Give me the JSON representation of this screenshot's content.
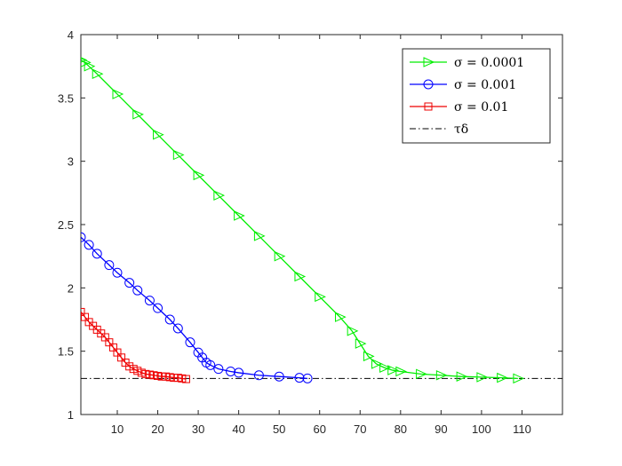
{
  "chart_data": {
    "type": "line",
    "title": "",
    "xlabel": "",
    "ylabel": "",
    "xlim": [
      1,
      120
    ],
    "ylim": [
      1,
      4
    ],
    "xticks": [
      10,
      20,
      30,
      40,
      50,
      60,
      70,
      80,
      90,
      100,
      110
    ],
    "yticks": [
      1,
      1.5,
      2,
      2.5,
      3,
      3.5,
      4
    ],
    "grid": false,
    "legend_position": "top-right",
    "series": [
      {
        "name": "σ = 0.0001",
        "color": "#00ee00",
        "marker": "triangle-right",
        "x": [
          1,
          2,
          3,
          5,
          10,
          15,
          20,
          25,
          30,
          35,
          40,
          45,
          50,
          55,
          60,
          65,
          68,
          70,
          72,
          74,
          76,
          78,
          80,
          85,
          90,
          95,
          100,
          105,
          109
        ],
        "y": [
          3.8,
          3.78,
          3.75,
          3.69,
          3.53,
          3.37,
          3.21,
          3.05,
          2.89,
          2.73,
          2.57,
          2.41,
          2.25,
          2.09,
          1.93,
          1.77,
          1.66,
          1.56,
          1.46,
          1.4,
          1.37,
          1.35,
          1.34,
          1.32,
          1.31,
          1.3,
          1.295,
          1.29,
          1.285
        ]
      },
      {
        "name": "σ = 0.001",
        "color": "#0000ff",
        "marker": "circle",
        "x": [
          1,
          3,
          5,
          8,
          10,
          13,
          15,
          18,
          20,
          23,
          25,
          28,
          30,
          31,
          32,
          33,
          35,
          38,
          40,
          45,
          50,
          55,
          57
        ],
        "y": [
          2.4,
          2.34,
          2.27,
          2.18,
          2.12,
          2.04,
          1.98,
          1.9,
          1.84,
          1.75,
          1.68,
          1.57,
          1.49,
          1.45,
          1.41,
          1.39,
          1.36,
          1.34,
          1.33,
          1.31,
          1.3,
          1.29,
          1.285
        ]
      },
      {
        "name": "σ = 0.01",
        "color": "#ee0000",
        "marker": "square",
        "x": [
          1,
          2,
          3,
          4,
          5,
          6,
          7,
          8,
          9,
          10,
          11,
          12,
          13,
          14,
          15,
          16,
          17,
          18,
          19,
          20,
          21,
          22,
          23,
          24,
          25,
          26,
          27
        ],
        "y": [
          1.81,
          1.77,
          1.73,
          1.7,
          1.67,
          1.64,
          1.61,
          1.57,
          1.53,
          1.49,
          1.45,
          1.41,
          1.38,
          1.36,
          1.345,
          1.33,
          1.32,
          1.315,
          1.31,
          1.305,
          1.3,
          1.3,
          1.295,
          1.29,
          1.29,
          1.285,
          1.28
        ]
      }
    ],
    "reference_line": {
      "name": "τδ",
      "y": 1.285,
      "color": "#000000",
      "style": "dash-dot"
    }
  }
}
